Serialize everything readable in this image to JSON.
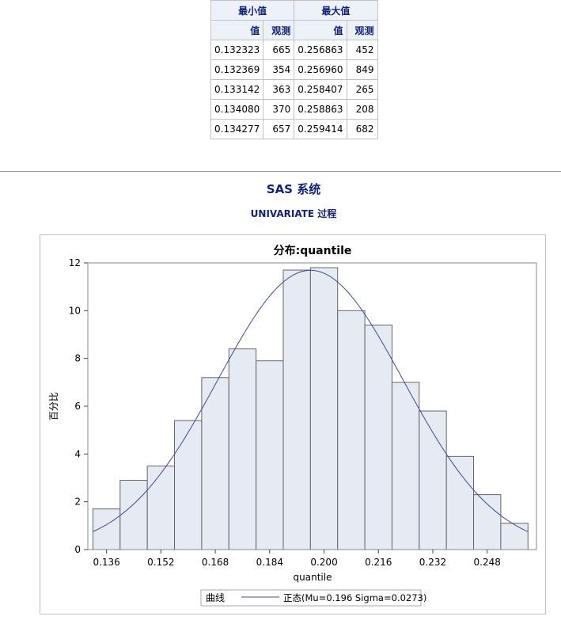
{
  "extremes": {
    "min_header": "最小值",
    "max_header": "最大值",
    "sub_value": "值",
    "sub_obs": "观测",
    "rows": [
      {
        "min_val": "0.132323",
        "min_obs": "665",
        "max_val": "0.256863",
        "max_obs": "452"
      },
      {
        "min_val": "0.132369",
        "min_obs": "354",
        "max_val": "0.256960",
        "max_obs": "849"
      },
      {
        "min_val": "0.133142",
        "min_obs": "363",
        "max_val": "0.258407",
        "max_obs": "265"
      },
      {
        "min_val": "0.134080",
        "min_obs": "370",
        "max_val": "0.258863",
        "max_obs": "208"
      },
      {
        "min_val": "0.134277",
        "min_obs": "657",
        "max_val": "0.259414",
        "max_obs": "682"
      }
    ]
  },
  "header": {
    "system_title": "SAS 系统",
    "proc_title": "UNIVARIATE 过程"
  },
  "chart_data": {
    "type": "bar",
    "title": "分布:quantile",
    "xlabel": "quantile",
    "ylabel": "百分比",
    "xlim": [
      0.1305,
      0.2625
    ],
    "ylim": [
      0,
      12
    ],
    "yticks": [
      0,
      2,
      4,
      6,
      8,
      10,
      12
    ],
    "xticks": [
      0.136,
      0.152,
      0.168,
      0.184,
      0.2,
      0.216,
      0.232,
      0.248
    ],
    "xtick_labels": [
      "0.136",
      "0.152",
      "0.168",
      "0.184",
      "0.200",
      "0.216",
      "0.232",
      "0.248"
    ],
    "bin_width": 0.008,
    "bin_midpoints": [
      0.136,
      0.144,
      0.152,
      0.16,
      0.168,
      0.176,
      0.184,
      0.192,
      0.2,
      0.208,
      0.216,
      0.224,
      0.232,
      0.24,
      0.248,
      0.256
    ],
    "values": [
      1.7,
      2.9,
      3.5,
      5.4,
      7.2,
      8.4,
      7.9,
      11.7,
      11.8,
      10.0,
      9.4,
      7.0,
      5.8,
      3.9,
      2.3,
      1.1
    ],
    "curve": {
      "mu": 0.196,
      "sigma": 0.0273
    },
    "grid": false,
    "legend": {
      "placement": "bottom",
      "title": "曲线",
      "entry": "正态(Mu=0.196 Sigma=0.0273)"
    },
    "colors": {
      "bar_fill": "#e6eaf2",
      "bar_stroke": "#666666",
      "curve": "#3c4a9a"
    }
  }
}
